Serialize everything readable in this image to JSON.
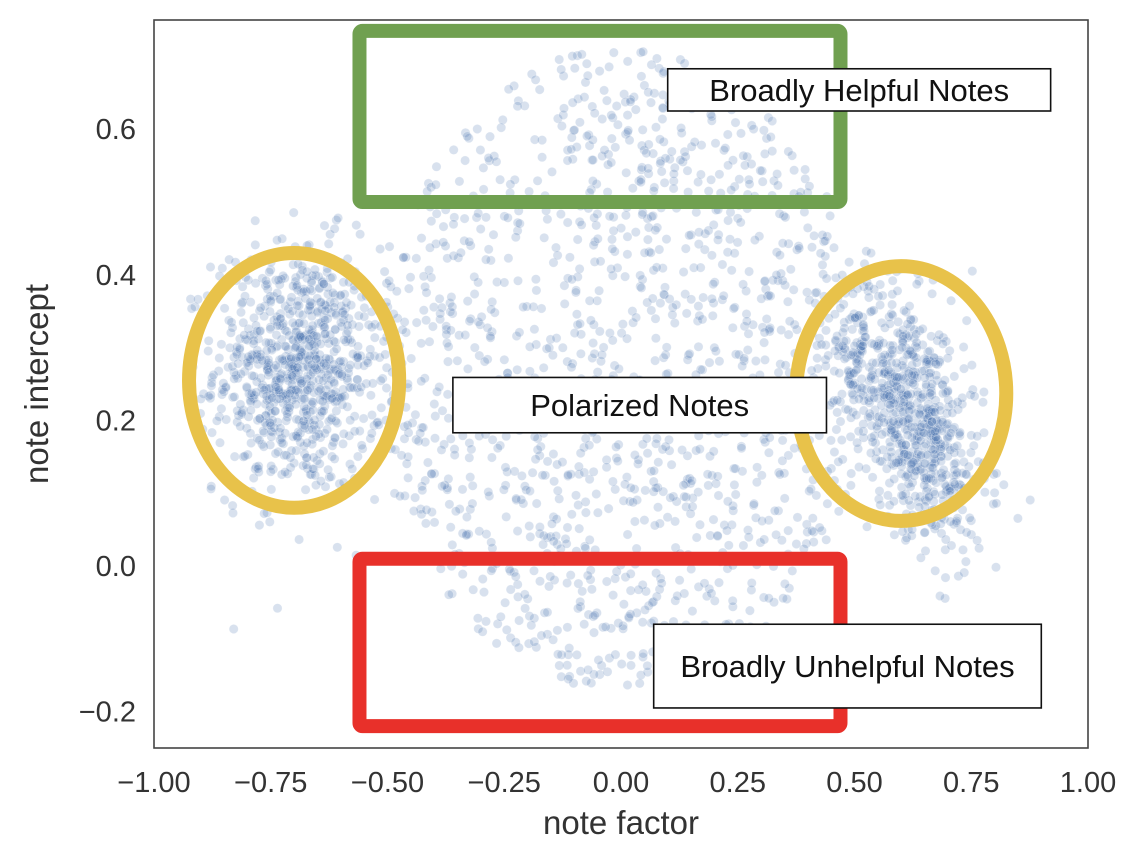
{
  "chart_data": {
    "type": "scatter",
    "xlabel": "note factor",
    "ylabel": "note intercept",
    "xlim": [
      -1.0,
      1.0
    ],
    "ylim": [
      -0.25,
      0.75
    ],
    "x_ticks": [
      -1.0,
      -0.75,
      -0.5,
      -0.25,
      0.0,
      0.25,
      0.5,
      0.75,
      1.0
    ],
    "x_tick_labels": [
      "−1.00",
      "−0.75",
      "−0.50",
      "−0.25",
      "0.00",
      "0.25",
      "0.50",
      "0.75",
      "1.00"
    ],
    "y_ticks": [
      -0.2,
      0.0,
      0.2,
      0.4,
      0.6
    ],
    "y_tick_labels": [
      "−0.2",
      "0.0",
      "0.2",
      "0.4",
      "0.6"
    ],
    "grid": false,
    "point_color": "#3a6aab",
    "point_opacity": 0.2,
    "point_count_approx": 3000,
    "clusters": [
      {
        "x_center": -0.69,
        "y_center": 0.27,
        "x_spread": 0.09,
        "y_spread": 0.085,
        "share": 0.28
      },
      {
        "x_center": 0.62,
        "y_center": 0.21,
        "x_spread": 0.08,
        "y_spread": 0.08,
        "share": 0.26
      },
      {
        "x_center": 0.0,
        "y_center": 0.27,
        "x_spread": 0.34,
        "y_spread": 0.22,
        "share": 0.46
      }
    ],
    "annotations": [
      {
        "type": "rect",
        "name": "helpful-box",
        "color": "#70a050",
        "x0": -0.56,
        "x1": 0.47,
        "y0": 0.5,
        "y1": 0.735
      },
      {
        "type": "rect",
        "name": "unhelpful-box",
        "color": "#e8302a",
        "x0": -0.56,
        "x1": 0.47,
        "y0": -0.22,
        "y1": 0.01
      },
      {
        "type": "ellipse",
        "name": "left-circle",
        "color": "#e8c24a",
        "cx": -0.7,
        "cy": 0.255,
        "rx": 0.225,
        "ry": 0.175
      },
      {
        "type": "ellipse",
        "name": "right-circle",
        "color": "#e8c24a",
        "cx": 0.6,
        "cy": 0.237,
        "rx": 0.225,
        "ry": 0.175
      }
    ],
    "labels": [
      {
        "name": "helpful-label",
        "text": "Broadly Helpful Notes",
        "x0": 0.1,
        "x1": 0.92,
        "y0": 0.625,
        "y1": 0.683
      },
      {
        "name": "polarized-label",
        "text": "Polarized Notes",
        "x0": -0.36,
        "x1": 0.44,
        "y0": 0.183,
        "y1": 0.259
      },
      {
        "name": "unhelpful-label",
        "text": "Broadly Unhelpful Notes",
        "x0": 0.07,
        "x1": 0.9,
        "y0": -0.195,
        "y1": -0.08
      }
    ]
  }
}
